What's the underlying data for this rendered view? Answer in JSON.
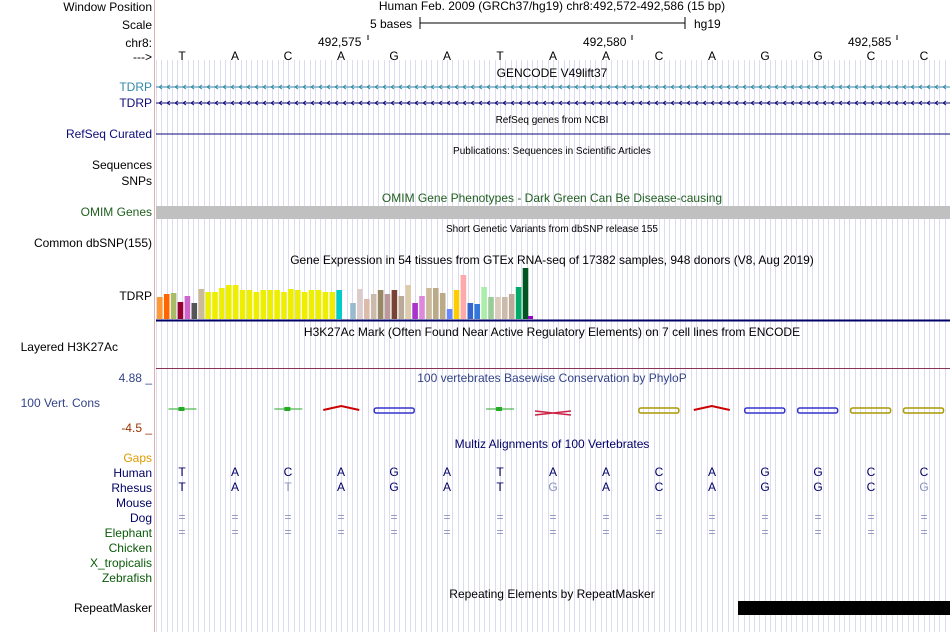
{
  "header": {
    "position_label": "Window Position",
    "position_text": "Human Feb. 2009 (GRCh37/hg19)    chr8:492,572-492,586 (15 bp)",
    "scale_label": "Scale",
    "scale_text": "5 bases",
    "assembly": "hg19",
    "chrom_label": "chr8:",
    "coords": [
      "492,575",
      "492,580",
      "492,585"
    ],
    "strand_label": "--->",
    "bases": [
      "T",
      "A",
      "C",
      "A",
      "G",
      "A",
      "T",
      "A",
      "A",
      "C",
      "A",
      "G",
      "G",
      "C",
      "C"
    ]
  },
  "tracks": {
    "gencode_title": "GENCODE V49lift37",
    "gencode_genes": [
      "TDRP",
      "TDRP"
    ],
    "refseq_title": "RefSeq genes from NCBI",
    "refseq_label": "RefSeq Curated",
    "pubs_title": "Publications: Sequences in Scientific Articles",
    "sequences_label": "Sequences",
    "snps_label": "SNPs",
    "omim_title": "OMIM Gene Phenotypes - Dark Green Can Be Disease-causing",
    "omim_label": "OMIM Genes",
    "dbsnp_title": "Short Genetic Variants from dbSNP release 155",
    "dbsnp_label": "Common dbSNP(155)",
    "gtex_title": "Gene Expression in 54 tissues from GTEx RNA-seq of 17382 samples, 948 donors (V8, Aug 2019)",
    "gtex_label": "TDRP",
    "h3k27_title": "H3K27Ac Mark (Often Found Near Active Regulatory Elements) on 7 cell lines from ENCODE",
    "h3k27_label": "Layered H3K27Ac",
    "phylop_title": "100 vertebrates Basewise Conservation by PhyloP",
    "phylop_label": "100 Vert. Cons",
    "phylop_max": "4.88 _",
    "phylop_min": "-4.5 _",
    "multiz_title": "Multiz Alignments of 100 Vertebrates",
    "repeat_title": "Repeating Elements by RepeatMasker",
    "repeat_label": "RepeatMasker"
  },
  "multiz": {
    "gaps_label": "Gaps",
    "species": [
      {
        "name": "Human",
        "row": [
          "T",
          "A",
          "C",
          "A",
          "G",
          "A",
          "T",
          "A",
          "A",
          "C",
          "A",
          "G",
          "G",
          "C",
          "C"
        ]
      },
      {
        "name": "Rhesus",
        "row": [
          "T",
          "A",
          "T",
          "A",
          "G",
          "A",
          "T",
          "G",
          "A",
          "C",
          "A",
          "G",
          "G",
          "C",
          "G"
        ],
        "diff": [
          2,
          7,
          14
        ]
      },
      {
        "name": "Mouse",
        "row": []
      },
      {
        "name": "Dog",
        "row": [
          "=",
          "=",
          "=",
          "=",
          "=",
          "=",
          "=",
          "=",
          "=",
          "=",
          "=",
          "=",
          "=",
          "=",
          "="
        ]
      },
      {
        "name": "Elephant",
        "row": [
          "=",
          "=",
          "=",
          "=",
          "=",
          "=",
          "=",
          "=",
          "=",
          "=",
          "=",
          "=",
          "=",
          "=",
          "="
        ]
      },
      {
        "name": "Chicken",
        "row": []
      },
      {
        "name": "X_tropicalis",
        "row": []
      },
      {
        "name": "Zebrafish",
        "row": []
      }
    ]
  },
  "gtex_bars": [
    {
      "v": 0.42,
      "c": "#ff9a33"
    },
    {
      "v": 0.48,
      "c": "#ff6600"
    },
    {
      "v": 0.5,
      "c": "#aabb66"
    },
    {
      "v": 0.33,
      "c": "#990033"
    },
    {
      "v": 0.45,
      "c": "#cc66cc"
    },
    {
      "v": 0.3,
      "c": "#555555"
    },
    {
      "v": 0.58,
      "c": "#ccbb99"
    },
    {
      "v": 0.52,
      "c": "#eeee00"
    },
    {
      "v": 0.52,
      "c": "#eeee00"
    },
    {
      "v": 0.6,
      "c": "#eeee00"
    },
    {
      "v": 0.66,
      "c": "#eeee00"
    },
    {
      "v": 0.66,
      "c": "#eeee00"
    },
    {
      "v": 0.56,
      "c": "#eeee00"
    },
    {
      "v": 0.56,
      "c": "#eeee00"
    },
    {
      "v": 0.52,
      "c": "#eeee00"
    },
    {
      "v": 0.56,
      "c": "#eeee00"
    },
    {
      "v": 0.56,
      "c": "#eeee00"
    },
    {
      "v": 0.56,
      "c": "#eeee00"
    },
    {
      "v": 0.52,
      "c": "#eeee00"
    },
    {
      "v": 0.58,
      "c": "#eeee00"
    },
    {
      "v": 0.56,
      "c": "#eeee00"
    },
    {
      "v": 0.52,
      "c": "#eeee00"
    },
    {
      "v": 0.56,
      "c": "#eeee00"
    },
    {
      "v": 0.56,
      "c": "#eeee00"
    },
    {
      "v": 0.52,
      "c": "#eeee00"
    },
    {
      "v": 0.52,
      "c": "#eeee00"
    },
    {
      "v": 0.56,
      "c": "#00cccc"
    },
    {
      "v": 0.0,
      "c": "#ffffff"
    },
    {
      "v": 0.3,
      "c": "#99bbcc"
    },
    {
      "v": 0.58,
      "c": "#ddcccc"
    },
    {
      "v": 0.38,
      "c": "#ddbbaa"
    },
    {
      "v": 0.48,
      "c": "#ccbbaa"
    },
    {
      "v": 0.56,
      "c": "#998866"
    },
    {
      "v": 0.48,
      "c": "#bb9999"
    },
    {
      "v": 0.56,
      "c": "#774433"
    },
    {
      "v": 0.45,
      "c": "#bbaa99"
    },
    {
      "v": 0.66,
      "c": "#ddccaa"
    },
    {
      "v": 0.3,
      "c": "#aa33cc"
    },
    {
      "v": 0.45,
      "c": "#dd88dd"
    },
    {
      "v": 0.6,
      "c": "#ccbb99"
    },
    {
      "v": 0.6,
      "c": "#bbaa88"
    },
    {
      "v": 0.5,
      "c": "#bbaa88"
    },
    {
      "v": 0.2,
      "c": "#6688ff"
    },
    {
      "v": 0.55,
      "c": "#ffcc00"
    },
    {
      "v": 0.85,
      "c": "#ffaaaa"
    },
    {
      "v": 0.3,
      "c": "#3366cc"
    },
    {
      "v": 0.28,
      "c": "#3377dd"
    },
    {
      "v": 0.62,
      "c": "#aaeeaa"
    },
    {
      "v": 0.42,
      "c": "#99cc99"
    },
    {
      "v": 0.42,
      "c": "#ddccbb"
    },
    {
      "v": 0.42,
      "c": "#ccbbaa"
    },
    {
      "v": 0.48,
      "c": "#bbaa99"
    },
    {
      "v": 0.62,
      "c": "#00aa66"
    },
    {
      "v": 0.98,
      "c": "#005522"
    }
  ],
  "colors": {
    "gencode_1": "#3388aa",
    "gencode_2": "#0c0c78",
    "refseq": "#0c0c78",
    "omim_label": "#206020",
    "omim_bar": "#c0c0c0",
    "phylop_label": "#334488",
    "phylop_max": "#334488",
    "phylop_min": "#993300",
    "gaps": "#dd9900",
    "species_dark": "#000066",
    "species_green": "#0a5a0a",
    "multiz_title": "#000066",
    "h3k27_line": "#883355",
    "gridline": "#dcdcf0"
  }
}
